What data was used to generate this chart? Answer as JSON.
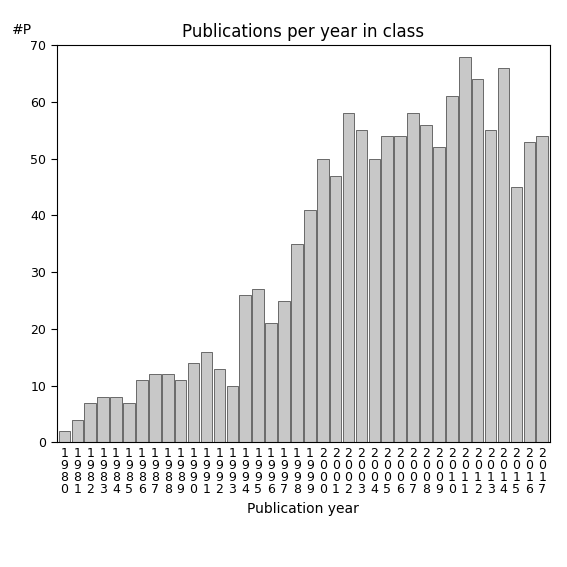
{
  "title": "Publications per year in class",
  "xlabel": "Publication year",
  "ylabel": "#P",
  "years": [
    1980,
    1981,
    1982,
    1983,
    1984,
    1985,
    1986,
    1987,
    1988,
    1989,
    1990,
    1991,
    1992,
    1993,
    1994,
    1995,
    1996,
    1997,
    1998,
    1999,
    2000,
    2001,
    2002,
    2003,
    2004,
    2005,
    2006,
    2007,
    2008,
    2009,
    2010,
    2011,
    2012,
    2013,
    2014,
    2015,
    2016,
    2017
  ],
  "values": [
    2,
    4,
    7,
    8,
    8,
    7,
    11,
    12,
    12,
    11,
    14,
    16,
    13,
    10,
    26,
    27,
    21,
    25,
    35,
    41,
    50,
    47,
    58,
    55,
    50,
    54,
    54,
    58,
    56,
    52,
    61,
    68,
    64,
    55,
    66,
    45,
    53,
    54
  ],
  "bar_color": "#c8c8c8",
  "bar_edge_color": "#555555",
  "ylim": [
    0,
    70
  ],
  "yticks": [
    0,
    10,
    20,
    30,
    40,
    50,
    60,
    70
  ],
  "background_color": "#ffffff",
  "title_fontsize": 12,
  "label_fontsize": 10,
  "tick_fontsize": 9
}
